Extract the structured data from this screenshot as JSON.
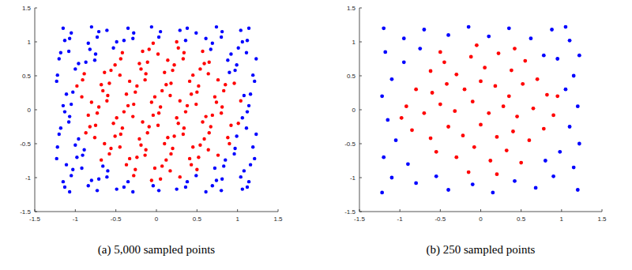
{
  "chart_data": [
    {
      "type": "scatter",
      "title": "(a) 5,000 sampled points",
      "xlim": [
        -1.5,
        1.5
      ],
      "ylim": [
        -1.5,
        1.5
      ],
      "xticks": [
        -1.5,
        -1,
        -0.5,
        0,
        0.5,
        1,
        1.5
      ],
      "yticks": [
        -1.5,
        -1,
        -0.5,
        0,
        0.5,
        1,
        1.5
      ],
      "grid": false,
      "series": [
        {
          "color": "#ff0000",
          "marker": "dot",
          "x": [
            -0.28,
            -0.06,
            0.05,
            0.29,
            -0.37,
            -0.26,
            -0.02,
            0.07,
            0.17,
            0.43,
            0.5,
            -0.68,
            -0.58,
            -0.33,
            -0.24,
            -0.14,
            0.12,
            0.18,
            0.41,
            0.52,
            0.76,
            -0.64,
            -0.56,
            -0.45,
            -0.19,
            -0.13,
            0.1,
            0.2,
            0.45,
            0.54,
            0.64,
            0.9,
            -0.87,
            -0.76,
            -0.51,
            -0.44,
            -0.21,
            -0.11,
            0.14,
            0.22,
            0.33,
            0.59,
            0.65,
            0.88,
            -0.82,
            -0.75,
            -0.53,
            -0.42,
            -0.17,
            -0.09,
            0.02,
            0.27,
            0.34,
            0.57,
            0.67,
            0.92,
            1.01,
            -0.84,
            -0.73,
            -0.49,
            -0.4,
            -0.29,
            -0.04,
            0.03,
            0.25,
            0.36,
            0.61,
            0.69,
            0.8,
            -0.8,
            -0.71,
            -0.61,
            -0.35,
            -0.28,
            -0.06,
            0.05,
            0.29,
            0.38,
            0.49,
            0.74,
            0.81,
            1.04,
            -0.92,
            -0.66,
            -0.6,
            -0.37,
            -0.26,
            -0.02,
            0.07,
            0.17,
            0.43,
            0.5,
            0.72,
            0.83,
            -0.98,
            -0.91,
            -0.68,
            -0.58,
            -0.33,
            -0.24,
            -0.14,
            0.12,
            0.18,
            0.41,
            0.52,
            0.76,
            0.85,
            0.96,
            -0.89,
            -0.64,
            -0.56,
            -0.45,
            -0.19,
            -0.13,
            0.1,
            0.2,
            0.45,
            0.54,
            0.64,
            -0.51,
            -0.44,
            -0.21,
            -0.11,
            0.14,
            0.22,
            0.33,
            0.59,
            0.65,
            -0.42,
            -0.17,
            -0.09,
            0.02,
            0.27,
            0.34,
            0.57,
            -0.04,
            0.25
          ],
          "values": [
            -0.97,
            -1.04,
            -1.02,
            -0.99,
            -0.81,
            -0.88,
            -0.86,
            -0.83,
            -0.9,
            -0.81,
            -0.88,
            -0.74,
            -0.65,
            -0.72,
            -0.7,
            -0.67,
            -0.74,
            -0.65,
            -0.72,
            -0.7,
            -0.67,
            -0.5,
            -0.57,
            -0.55,
            -0.52,
            -0.59,
            -0.5,
            -0.57,
            -0.55,
            -0.52,
            -0.59,
            -0.5,
            -0.34,
            -0.41,
            -0.39,
            -0.36,
            -0.43,
            -0.34,
            -0.41,
            -0.39,
            -0.36,
            -0.43,
            -0.34,
            -0.41,
            -0.25,
            -0.23,
            -0.2,
            -0.27,
            -0.18,
            -0.25,
            -0.23,
            -0.2,
            -0.27,
            -0.18,
            -0.25,
            -0.23,
            -0.2,
            -0.08,
            -0.05,
            -0.12,
            -0.03,
            -0.1,
            -0.08,
            -0.05,
            -0.12,
            -0.03,
            -0.1,
            -0.08,
            -0.05,
            0.11,
            0.04,
            0.13,
            0.06,
            0.08,
            0.11,
            0.04,
            0.13,
            0.06,
            0.08,
            0.11,
            0.04,
            0.13,
            0.19,
            0.28,
            0.21,
            0.23,
            0.26,
            0.19,
            0.28,
            0.21,
            0.23,
            0.26,
            0.19,
            0.28,
            0.35,
            0.44,
            0.37,
            0.39,
            0.42,
            0.35,
            0.44,
            0.37,
            0.39,
            0.42,
            0.35,
            0.44,
            0.37,
            0.39,
            0.53,
            0.55,
            0.58,
            0.51,
            0.6,
            0.53,
            0.55,
            0.58,
            0.51,
            0.6,
            0.53,
            0.66,
            0.75,
            0.68,
            0.7,
            0.73,
            0.66,
            0.75,
            0.68,
            0.7,
            0.84,
            0.86,
            0.89,
            0.82,
            0.91,
            0.84,
            0.86,
            0.98,
            1.0
          ]
        },
        {
          "color": "#0000ff",
          "marker": "dot",
          "x": [
            -1.13,
            -1.07,
            -0.84,
            -0.73,
            -0.49,
            -0.4,
            -0.29,
            -0.04,
            0.03,
            0.25,
            0.36,
            0.61,
            0.69,
            0.8,
            1.06,
            1.12,
            -1.15,
            -1.05,
            -0.8,
            -0.71,
            -0.61,
            -0.35,
            0.38,
            0.49,
            0.74,
            0.81,
            1.04,
            1.14,
            -1.11,
            -1.03,
            -0.92,
            -0.66,
            -0.6,
            0.72,
            0.83,
            1.08,
            1.16,
            -1.23,
            -0.98,
            -0.91,
            0.85,
            0.96,
            1.21,
            -1.22,
            -1.0,
            -0.89,
            0.97,
            1.19,
            -1.2,
            -0.96,
            0.99,
            1.23,
            -1.18,
            -1.08,
            1.11,
            -1.13,
            -1.07,
            1.06,
            1.12,
            -1.15,
            -1.05,
            1.14,
            -1.11,
            -1.03,
            1.08,
            1.16,
            -1.23,
            1.21,
            -1.22,
            -1.0,
            0.9,
            0.97,
            1.19,
            -1.2,
            -0.96,
            -0.87,
            -0.76,
            0.88,
            0.99,
            1.23,
            -1.18,
            -1.08,
            -0.82,
            -0.75,
            -0.53,
            0.67,
            0.92,
            1.01,
            1.11,
            -1.13,
            -1.07,
            -0.84,
            -0.73,
            -0.49,
            -0.4,
            -0.29,
            0.03,
            0.36,
            0.61,
            0.69,
            0.8,
            1.06,
            1.12,
            -1.15,
            -1.05,
            -0.8,
            -0.71,
            -0.61,
            -0.35,
            -0.28,
            -0.06,
            0.05,
            0.29,
            0.38,
            0.49,
            0.74,
            0.81,
            1.04,
            1.14
          ],
          "values": [
            -1.14,
            -1.21,
            -1.12,
            -1.19,
            -1.17,
            -1.14,
            -1.21,
            -1.12,
            -1.19,
            -1.17,
            -1.14,
            -1.21,
            -1.12,
            -1.19,
            -1.17,
            -1.14,
            -1.06,
            -0.97,
            -1.04,
            -1.02,
            -0.99,
            -1.06,
            -1.06,
            -0.97,
            -1.04,
            -1.02,
            -0.99,
            -1.06,
            -0.81,
            -0.88,
            -0.86,
            -0.83,
            -0.9,
            -0.86,
            -0.83,
            -0.9,
            -0.81,
            -0.72,
            -0.7,
            -0.67,
            -0.74,
            -0.65,
            -0.72,
            -0.55,
            -0.52,
            -0.59,
            -0.57,
            -0.55,
            -0.36,
            -0.43,
            -0.39,
            -0.36,
            -0.27,
            -0.18,
            -0.27,
            -0.03,
            -0.1,
            -0.12,
            -0.03,
            0.06,
            0.08,
            0.06,
            0.23,
            0.26,
            0.21,
            0.23,
            0.42,
            0.42,
            0.51,
            0.6,
            0.55,
            0.58,
            0.51,
            0.75,
            0.68,
            0.7,
            0.73,
            0.73,
            0.66,
            0.75,
            0.84,
            0.86,
            0.89,
            0.82,
            0.91,
            0.89,
            0.82,
            0.91,
            0.84,
            1.02,
            1.05,
            0.98,
            1.07,
            1.0,
            1.02,
            1.05,
            1.07,
            1.02,
            1.05,
            0.98,
            1.07,
            1.0,
            1.02,
            1.2,
            1.13,
            1.22,
            1.15,
            1.17,
            1.2,
            1.13,
            1.22,
            1.15,
            1.17,
            1.2,
            1.13,
            1.22,
            1.15,
            1.17,
            1.2
          ]
        }
      ]
    },
    {
      "type": "scatter",
      "title": "(b) 250 sampled points",
      "xlim": [
        -1.5,
        1.5
      ],
      "ylim": [
        -1.5,
        1.5
      ],
      "xticks": [
        -1.5,
        -1,
        -0.5,
        0,
        0.5,
        1,
        1.5
      ],
      "yticks": [
        -1.5,
        -1,
        -0.5,
        0,
        0.5,
        1,
        1.5
      ],
      "grid": false,
      "series": [
        {
          "color": "#ff0000",
          "marker": "dot",
          "x": [
            -0.62,
            -0.45,
            -0.3,
            -0.12,
            0.05,
            0.22,
            0.38,
            0.55,
            0.7,
            -0.8,
            -0.6,
            -0.42,
            -0.2,
            0.0,
            0.18,
            0.35,
            0.52,
            0.82,
            -0.92,
            -0.7,
            -0.5,
            -0.32,
            -0.1,
            0.1,
            0.28,
            0.45,
            0.65,
            0.9,
            -0.85,
            -0.62,
            -0.4,
            -0.22,
            0.0,
            0.2,
            0.4,
            0.6,
            0.78,
            -0.55,
            -0.3,
            -0.08,
            0.12,
            0.32,
            0.5,
            -0.15,
            0.2,
            -0.05,
            0.42,
            -0.5,
            -0.98,
            0.95
          ],
          "values": [
            0.57,
            0.7,
            0.52,
            0.78,
            0.62,
            0.83,
            0.58,
            0.72,
            0.45,
            0.3,
            0.25,
            0.38,
            0.3,
            0.42,
            0.35,
            0.2,
            0.38,
            0.22,
            0.05,
            -0.05,
            0.08,
            -0.02,
            0.12,
            -0.05,
            0.05,
            -0.1,
            0.02,
            -0.08,
            -0.3,
            -0.42,
            -0.25,
            -0.38,
            -0.22,
            -0.4,
            -0.32,
            -0.45,
            -0.28,
            -0.62,
            -0.7,
            -0.55,
            -0.75,
            -0.6,
            -0.78,
            -0.92,
            -0.95,
            0.95,
            0.9,
            0.85,
            -0.12,
            0.2
          ]
        },
        {
          "color": "#0000ff",
          "marker": "dot",
          "x": [
            -1.2,
            -0.95,
            -0.7,
            -0.4,
            -0.15,
            0.1,
            0.35,
            0.62,
            0.88,
            1.1,
            1.22,
            0.95,
            1.15,
            -1.18,
            -0.95,
            -1.1,
            -1.22,
            1.05,
            1.2,
            -1.15,
            1.1,
            -1.05,
            1.22,
            0.98,
            -1.2,
            -0.9,
            1.15,
            -1.1,
            -0.8,
            -0.55,
            -0.4,
            -0.1,
            0.15,
            0.42,
            0.68,
            0.9,
            1.2,
            0.8,
            -0.75,
            0.78,
            -1.22,
            1.05
          ],
          "values": [
            1.2,
            1.05,
            1.18,
            1.1,
            1.22,
            1.08,
            1.2,
            1.05,
            1.18,
            1.02,
            0.8,
            0.75,
            0.5,
            0.85,
            0.7,
            0.45,
            0.2,
            0.3,
            0.05,
            -0.15,
            -0.25,
            -0.45,
            -0.5,
            -0.62,
            -0.7,
            -0.8,
            -0.85,
            -1.0,
            -1.08,
            -0.98,
            -1.18,
            -1.1,
            -1.22,
            -1.05,
            -1.15,
            -0.98,
            -1.18,
            -0.75,
            0.9,
            0.8,
            -1.22,
            1.22
          ]
        }
      ]
    }
  ]
}
